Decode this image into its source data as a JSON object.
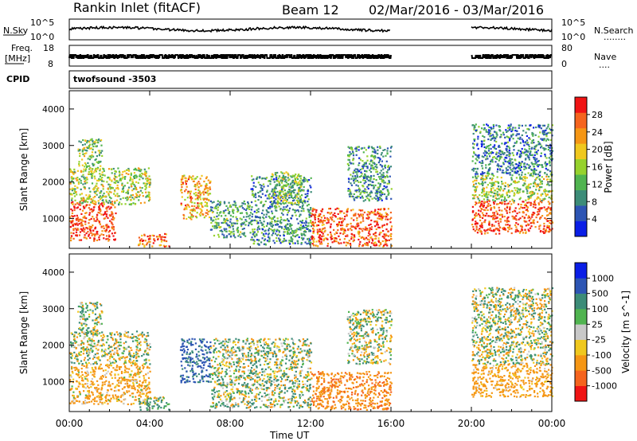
{
  "header": {
    "site": "Rankin Inlet (fitACF)",
    "beam": "Beam 12",
    "date_range": "02/Mar/2016 - 03/Mar/2016"
  },
  "small_panels": {
    "nsky_label": "N.Sky",
    "nsearch_label": "N.Search",
    "nsearch_dots": "........",
    "freq_label_top": "Freq.",
    "freq_label_bottom": "[MHz]",
    "nave_label": "Nave",
    "nave_dots": "....",
    "cpid_label": "CPID",
    "cpid_value": "twofsound -3503",
    "noise_ticks_left": [
      "10^5",
      "10^0"
    ],
    "noise_ticks_right": [
      "10^5",
      "10^0"
    ],
    "freq_ticks": [
      "18",
      "8"
    ],
    "nave_ticks": [
      "80",
      "0"
    ]
  },
  "time_axis": {
    "label": "Time UT",
    "ticks": [
      "00:00",
      "04:00",
      "08:00",
      "12:00",
      "16:00",
      "20:00",
      "00:00"
    ]
  },
  "colors": {
    "power_scale": [
      "#0a1ee6",
      "#2d55b4",
      "#3c8c78",
      "#50b450",
      "#96d22d",
      "#f0c81e",
      "#f59614",
      "#f5641e",
      "#f01414"
    ],
    "velocity_scale": [
      "#f01414",
      "#f5641e",
      "#f59614",
      "#f0c81e",
      "#c8c8c8",
      "#50b450",
      "#3c8c78",
      "#2d55b4",
      "#0a1ee6"
    ]
  },
  "chart_data": [
    {
      "type": "heatmap",
      "panel": "power",
      "title": "",
      "xlabel": "Time UT",
      "ylabel": "Slant Range [km]",
      "x_range_hours": [
        0,
        24
      ],
      "ylim": [
        180,
        4500
      ],
      "y_ticks": [
        1000,
        2000,
        3000,
        4000
      ],
      "data_gaps_hours": [
        [
          16,
          20
        ]
      ],
      "colorbar": {
        "label": "Power [dB]",
        "ticks": [
          4,
          8,
          12,
          16,
          20,
          24,
          28
        ],
        "range": [
          0,
          32
        ]
      },
      "echo_regions": [
        {
          "t": [
            0.0,
            2.3
          ],
          "range": [
            400,
            1500
          ],
          "level": 0.92
        },
        {
          "t": [
            0.0,
            4.0
          ],
          "range": [
            1400,
            2400
          ],
          "level": 0.5
        },
        {
          "t": [
            0.4,
            1.6
          ],
          "range": [
            2300,
            3200
          ],
          "level": 0.45
        },
        {
          "t": [
            3.4,
            5.0
          ],
          "range": [
            250,
            600
          ],
          "level": 0.8
        },
        {
          "t": [
            5.5,
            7.0
          ],
          "range": [
            1000,
            2200
          ],
          "level": 0.7
        },
        {
          "t": [
            7.0,
            9.0
          ],
          "range": [
            500,
            1500
          ],
          "level": 0.35
        },
        {
          "t": [
            9.0,
            12.0
          ],
          "range": [
            300,
            2200
          ],
          "level": 0.3
        },
        {
          "t": [
            10.0,
            11.5
          ],
          "range": [
            1400,
            2300
          ],
          "level": 0.45
        },
        {
          "t": [
            12.0,
            16.0
          ],
          "range": [
            250,
            1300
          ],
          "level": 0.85
        },
        {
          "t": [
            13.8,
            16.0
          ],
          "range": [
            1500,
            3000
          ],
          "level": 0.3
        },
        {
          "t": [
            20.0,
            24.0
          ],
          "range": [
            600,
            1500
          ],
          "level": 0.88
        },
        {
          "t": [
            20.0,
            24.0
          ],
          "range": [
            1500,
            2200
          ],
          "level": 0.5
        },
        {
          "t": [
            20.0,
            24.0
          ],
          "range": [
            2200,
            3600
          ],
          "level": 0.25
        }
      ]
    },
    {
      "type": "heatmap",
      "panel": "velocity",
      "title": "",
      "xlabel": "Time UT",
      "ylabel": "Slant Range [km]",
      "x_range_hours": [
        0,
        24
      ],
      "ylim": [
        180,
        4500
      ],
      "y_ticks": [
        1000,
        2000,
        3000,
        4000
      ],
      "data_gaps_hours": [
        [
          16,
          20
        ]
      ],
      "colorbar": {
        "label": "Velocity [m s^-1]",
        "ticks": [
          "1000",
          "500",
          "100",
          "25",
          "-25",
          "-100",
          "-500",
          "-1000"
        ]
      },
      "echo_regions": [
        {
          "t": [
            0.0,
            4.0
          ],
          "range": [
            400,
            1500
          ],
          "velocity": -200
        },
        {
          "t": [
            0.0,
            4.0
          ],
          "range": [
            1500,
            2400
          ],
          "velocity": 0
        },
        {
          "t": [
            0.4,
            1.6
          ],
          "range": [
            2300,
            3200
          ],
          "velocity": 50
        },
        {
          "t": [
            3.4,
            5.0
          ],
          "range": [
            250,
            600
          ],
          "velocity": 100
        },
        {
          "t": [
            5.5,
            7.0
          ],
          "range": [
            1000,
            2200
          ],
          "velocity": 600
        },
        {
          "t": [
            7.0,
            12.0
          ],
          "range": [
            300,
            2200
          ],
          "velocity": 50
        },
        {
          "t": [
            12.0,
            16.0
          ],
          "range": [
            250,
            1300
          ],
          "velocity": -400
        },
        {
          "t": [
            13.8,
            16.0
          ],
          "range": [
            1500,
            3000
          ],
          "velocity": 0
        },
        {
          "t": [
            20.0,
            24.0
          ],
          "range": [
            600,
            1500
          ],
          "velocity": -250
        },
        {
          "t": [
            20.0,
            24.0
          ],
          "range": [
            1500,
            2200
          ],
          "velocity": 0
        },
        {
          "t": [
            20.0,
            24.0
          ],
          "range": [
            2200,
            3600
          ],
          "velocity": 20
        }
      ]
    }
  ]
}
